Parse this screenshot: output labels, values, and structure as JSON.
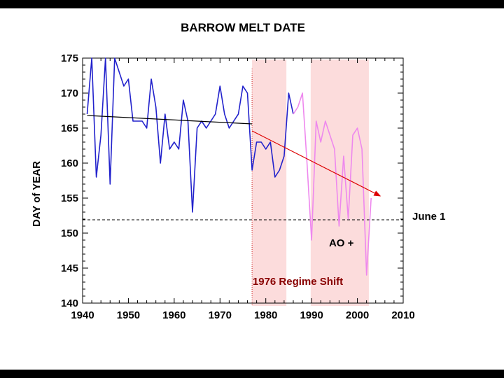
{
  "chart_data": {
    "type": "line",
    "title": "BARROW MELT DATE",
    "xlabel": "",
    "ylabel": "DAY of YEAR",
    "xlim": [
      1940,
      2010
    ],
    "ylim": [
      140,
      175
    ],
    "xticks": [
      1940,
      1950,
      1960,
      1970,
      1980,
      1990,
      2000,
      2010
    ],
    "yticks": [
      140,
      145,
      150,
      155,
      160,
      165,
      170,
      175
    ],
    "grid": false,
    "series": [
      {
        "color": "#2222cc",
        "points": [
          [
            1941,
            167
          ],
          [
            1942,
            175
          ],
          [
            1943,
            158
          ],
          [
            1944,
            164
          ],
          [
            1945,
            175
          ],
          [
            1946,
            157
          ],
          [
            1947,
            175
          ],
          [
            1948,
            173
          ],
          [
            1949,
            171
          ],
          [
            1950,
            172
          ],
          [
            1951,
            166
          ],
          [
            1952,
            166
          ],
          [
            1953,
            166
          ],
          [
            1954,
            165
          ],
          [
            1955,
            172
          ],
          [
            1956,
            168
          ],
          [
            1957,
            160
          ],
          [
            1958,
            167
          ],
          [
            1959,
            162
          ],
          [
            1960,
            163
          ],
          [
            1961,
            162
          ],
          [
            1962,
            169
          ],
          [
            1963,
            166
          ],
          [
            1964,
            153
          ],
          [
            1965,
            165
          ],
          [
            1966,
            166
          ],
          [
            1967,
            165
          ],
          [
            1968,
            166
          ],
          [
            1969,
            167
          ],
          [
            1970,
            171
          ],
          [
            1971,
            167
          ],
          [
            1972,
            165
          ],
          [
            1973,
            166
          ],
          [
            1974,
            167
          ],
          [
            1975,
            171
          ],
          [
            1976,
            170
          ],
          [
            1977,
            159
          ],
          [
            1978,
            163
          ],
          [
            1979,
            163
          ],
          [
            1980,
            162
          ],
          [
            1981,
            163
          ],
          [
            1982,
            158
          ],
          [
            1983,
            159
          ],
          [
            1984,
            161
          ],
          [
            1985,
            170
          ],
          [
            1986,
            167
          ]
        ]
      },
      {
        "color": "#ee88ee",
        "points": [
          [
            1986,
            167
          ],
          [
            1987,
            168
          ],
          [
            1988,
            170
          ],
          [
            1989,
            160
          ],
          [
            1990,
            149
          ],
          [
            1991,
            166
          ],
          [
            1992,
            163
          ],
          [
            1993,
            166
          ],
          [
            1994,
            164
          ],
          [
            1995,
            162
          ],
          [
            1996,
            151
          ],
          [
            1997,
            161
          ],
          [
            1998,
            152
          ],
          [
            1999,
            164
          ],
          [
            2000,
            165
          ],
          [
            2001,
            162
          ],
          [
            2002,
            144
          ],
          [
            2003,
            155
          ]
        ]
      }
    ],
    "trend_lines": [
      {
        "color": "#000000",
        "from": [
          1941,
          166.8
        ],
        "to": [
          1977,
          165.6
        ]
      },
      {
        "color": "#dd0000",
        "from": [
          1977,
          164.6
        ],
        "to": [
          2005,
          155.3
        ],
        "arrow": true
      }
    ],
    "shaded_regions": [
      {
        "x": [
          1977,
          1984.5
        ],
        "color": "#fcdcdc"
      },
      {
        "x": [
          1989.8,
          2002.5
        ],
        "color": "#fcdcdc"
      }
    ],
    "reference_line": {
      "y": 151.9,
      "style": "dashed",
      "label": "June 1"
    },
    "vertical_marker": {
      "x": 1977,
      "style": "dotted",
      "color": "#cc2222"
    },
    "annotations": [
      {
        "text": "1976 Regime Shift",
        "x": 1987,
        "y": 142.6,
        "color": "#880000"
      },
      {
        "text": "AO +",
        "x": 1996.5,
        "y": 148.1,
        "color": "#000000"
      }
    ]
  }
}
